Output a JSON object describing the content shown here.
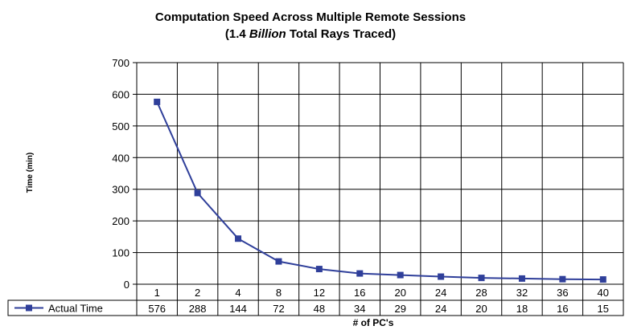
{
  "chart_data": {
    "type": "line",
    "title_line1": "Computation Speed Across Multiple Remote Sessions",
    "title_line2_pre": "(1.4 ",
    "title_line2_em": "Billion",
    "title_line2_post": "  Total Rays Traced)",
    "xlabel": "# of PC's",
    "ylabel": "Time (min)",
    "ylim": [
      0,
      700
    ],
    "yticks": [
      0,
      100,
      200,
      300,
      400,
      500,
      600,
      700
    ],
    "categories": [
      "1",
      "2",
      "4",
      "8",
      "12",
      "16",
      "20",
      "24",
      "28",
      "32",
      "36",
      "40"
    ],
    "series": [
      {
        "name": "Actual Time",
        "values": [
          576,
          288,
          144,
          72,
          48,
          34,
          29,
          24,
          20,
          18,
          16,
          15
        ],
        "color": "#2f3f9a"
      }
    ],
    "grid": true,
    "data_table": true
  }
}
